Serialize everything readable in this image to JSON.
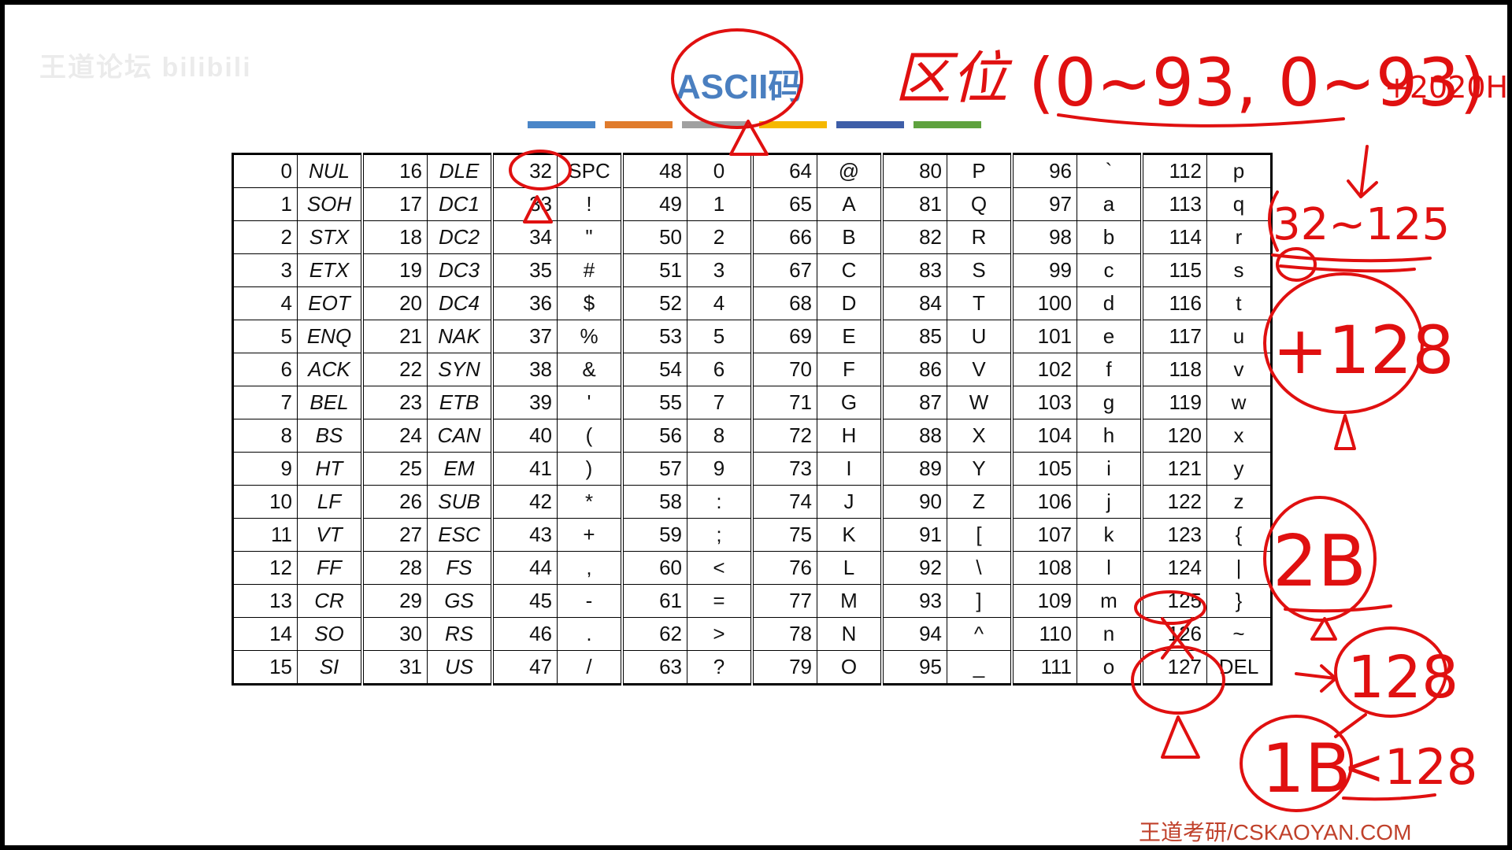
{
  "watermark": "王道论坛 bilibili",
  "title": "ASCII码",
  "color_bar": [
    "#4a86c8",
    "#e07b2c",
    "#a0a0a0",
    "#f5b800",
    "#3e5ea8",
    "#5ea23e"
  ],
  "rows": [
    [
      [
        "0",
        "NUL"
      ],
      [
        "16",
        "DLE"
      ],
      [
        "32",
        "SPC"
      ],
      [
        "48",
        "0"
      ],
      [
        "64",
        "@"
      ],
      [
        "80",
        "P"
      ],
      [
        "96",
        "`"
      ],
      [
        "112",
        "p"
      ]
    ],
    [
      [
        "1",
        "SOH"
      ],
      [
        "17",
        "DC1"
      ],
      [
        "33",
        "!"
      ],
      [
        "49",
        "1"
      ],
      [
        "65",
        "A"
      ],
      [
        "81",
        "Q"
      ],
      [
        "97",
        "a"
      ],
      [
        "113",
        "q"
      ]
    ],
    [
      [
        "2",
        "STX"
      ],
      [
        "18",
        "DC2"
      ],
      [
        "34",
        "\""
      ],
      [
        "50",
        "2"
      ],
      [
        "66",
        "B"
      ],
      [
        "82",
        "R"
      ],
      [
        "98",
        "b"
      ],
      [
        "114",
        "r"
      ]
    ],
    [
      [
        "3",
        "ETX"
      ],
      [
        "19",
        "DC3"
      ],
      [
        "35",
        "#"
      ],
      [
        "51",
        "3"
      ],
      [
        "67",
        "C"
      ],
      [
        "83",
        "S"
      ],
      [
        "99",
        "c"
      ],
      [
        "115",
        "s"
      ]
    ],
    [
      [
        "4",
        "EOT"
      ],
      [
        "20",
        "DC4"
      ],
      [
        "36",
        "$"
      ],
      [
        "52",
        "4"
      ],
      [
        "68",
        "D"
      ],
      [
        "84",
        "T"
      ],
      [
        "100",
        "d"
      ],
      [
        "116",
        "t"
      ]
    ],
    [
      [
        "5",
        "ENQ"
      ],
      [
        "21",
        "NAK"
      ],
      [
        "37",
        "%"
      ],
      [
        "53",
        "5"
      ],
      [
        "69",
        "E"
      ],
      [
        "85",
        "U"
      ],
      [
        "101",
        "e"
      ],
      [
        "117",
        "u"
      ]
    ],
    [
      [
        "6",
        "ACK"
      ],
      [
        "22",
        "SYN"
      ],
      [
        "38",
        "&"
      ],
      [
        "54",
        "6"
      ],
      [
        "70",
        "F"
      ],
      [
        "86",
        "V"
      ],
      [
        "102",
        "f"
      ],
      [
        "118",
        "v"
      ]
    ],
    [
      [
        "7",
        "BEL"
      ],
      [
        "23",
        "ETB"
      ],
      [
        "39",
        "'"
      ],
      [
        "55",
        "7"
      ],
      [
        "71",
        "G"
      ],
      [
        "87",
        "W"
      ],
      [
        "103",
        "g"
      ],
      [
        "119",
        "w"
      ]
    ],
    [
      [
        "8",
        "BS"
      ],
      [
        "24",
        "CAN"
      ],
      [
        "40",
        "("
      ],
      [
        "56",
        "8"
      ],
      [
        "72",
        "H"
      ],
      [
        "88",
        "X"
      ],
      [
        "104",
        "h"
      ],
      [
        "120",
        "x"
      ]
    ],
    [
      [
        "9",
        "HT"
      ],
      [
        "25",
        "EM"
      ],
      [
        "41",
        ")"
      ],
      [
        "57",
        "9"
      ],
      [
        "73",
        "I"
      ],
      [
        "89",
        "Y"
      ],
      [
        "105",
        "i"
      ],
      [
        "121",
        "y"
      ]
    ],
    [
      [
        "10",
        "LF"
      ],
      [
        "26",
        "SUB"
      ],
      [
        "42",
        "*"
      ],
      [
        "58",
        ":"
      ],
      [
        "74",
        "J"
      ],
      [
        "90",
        "Z"
      ],
      [
        "106",
        "j"
      ],
      [
        "122",
        "z"
      ]
    ],
    [
      [
        "11",
        "VT"
      ],
      [
        "27",
        "ESC"
      ],
      [
        "43",
        "+"
      ],
      [
        "59",
        ";"
      ],
      [
        "75",
        "K"
      ],
      [
        "91",
        "["
      ],
      [
        "107",
        "k"
      ],
      [
        "123",
        "{"
      ]
    ],
    [
      [
        "12",
        "FF"
      ],
      [
        "28",
        "FS"
      ],
      [
        "44",
        ","
      ],
      [
        "60",
        "<"
      ],
      [
        "76",
        "L"
      ],
      [
        "92",
        "\\"
      ],
      [
        "108",
        "l"
      ],
      [
        "124",
        "|"
      ]
    ],
    [
      [
        "13",
        "CR"
      ],
      [
        "29",
        "GS"
      ],
      [
        "45",
        "-"
      ],
      [
        "61",
        "="
      ],
      [
        "77",
        "M"
      ],
      [
        "93",
        "]"
      ],
      [
        "109",
        "m"
      ],
      [
        "125",
        "}"
      ]
    ],
    [
      [
        "14",
        "SO"
      ],
      [
        "30",
        "RS"
      ],
      [
        "46",
        "."
      ],
      [
        "62",
        ">"
      ],
      [
        "78",
        "N"
      ],
      [
        "94",
        "^"
      ],
      [
        "110",
        "n"
      ],
      [
        "126",
        "~"
      ]
    ],
    [
      [
        "15",
        "SI"
      ],
      [
        "31",
        "US"
      ],
      [
        "47",
        "/"
      ],
      [
        "63",
        "?"
      ],
      [
        "79",
        "O"
      ],
      [
        "95",
        "_"
      ],
      [
        "111",
        "o"
      ],
      [
        "127",
        "DEL"
      ]
    ]
  ],
  "annotations": {
    "quwei": "区位",
    "range": "(0~93, 0~93)",
    "offset": "+2020H",
    "printable": "32~125",
    "plus128": "+128",
    "two_bytes": "2B",
    "val128": "128",
    "one_byte": "1B",
    "lt128": "<128"
  },
  "footer": "王道考研/CSKAOYAN.COM"
}
